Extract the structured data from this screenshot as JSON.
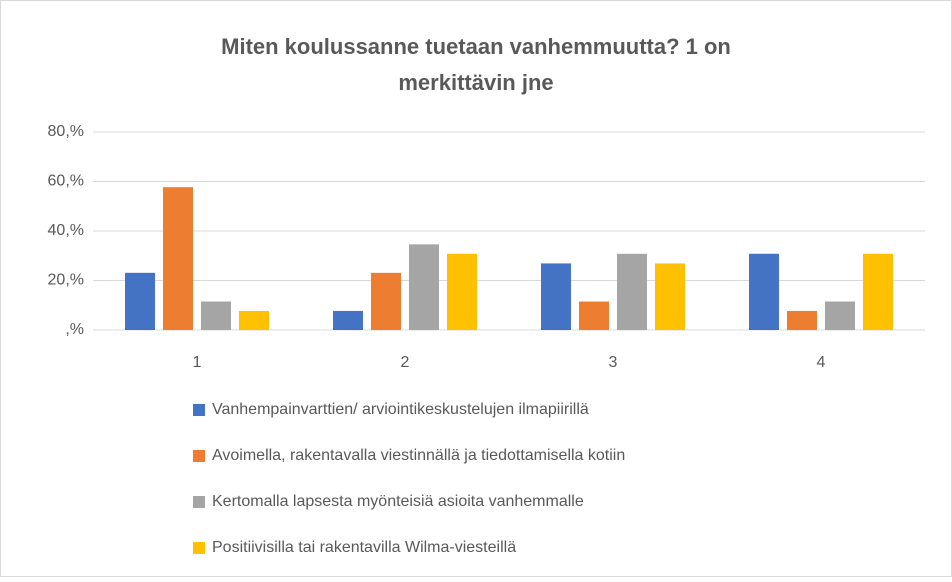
{
  "chart_data": {
    "type": "bar",
    "title_lines": [
      "Miten koulussanne tuetaan vanhemmuutta? 1 on",
      "merkittävin jne"
    ],
    "categories": [
      "1",
      "2",
      "3",
      "4"
    ],
    "series": [
      {
        "name": "Vanhempainvarttien/ arviointikeskustelujen ilmapiirillä",
        "color": "#4472c4",
        "values": [
          23.1,
          7.7,
          26.9,
          30.8
        ]
      },
      {
        "name": "Avoimella, rakentavalla viestinnällä ja tiedottamisella kotiin",
        "color": "#ed7d31",
        "values": [
          57.7,
          23.1,
          11.5,
          7.7
        ]
      },
      {
        "name": "Kertomalla lapsesta myönteisiä asioita vanhemmalle",
        "color": "#a5a5a5",
        "values": [
          11.5,
          34.6,
          30.8,
          11.5
        ]
      },
      {
        "name": "Positiivisilla tai rakentavilla Wilma-viesteillä",
        "color": "#ffc000",
        "values": [
          7.7,
          30.8,
          26.9,
          30.8
        ]
      }
    ],
    "ylim": [
      0,
      80
    ],
    "yticks": [
      {
        "value": 0,
        "label": ",%"
      },
      {
        "value": 20,
        "label": "20,%"
      },
      {
        "value": 40,
        "label": "40,%"
      },
      {
        "value": 60,
        "label": "60,%"
      },
      {
        "value": 80,
        "label": "80,%"
      }
    ],
    "grid": true,
    "legend": "bottom"
  }
}
